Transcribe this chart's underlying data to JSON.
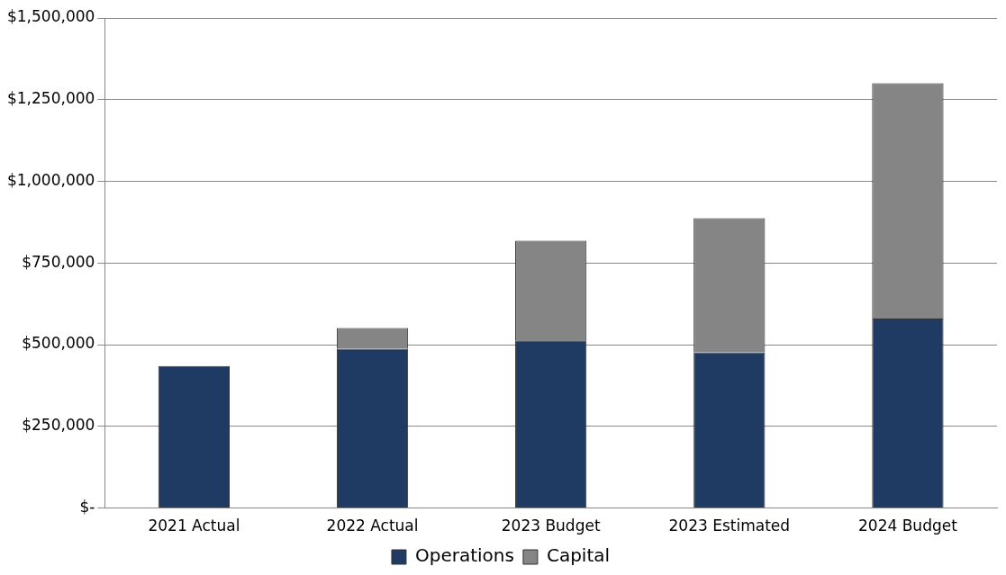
{
  "chart_data": {
    "type": "bar",
    "stacked": true,
    "categories": [
      "2021 Actual",
      "2022 Actual",
      "2023 Budget",
      "2023 Estimated",
      "2024 Budget"
    ],
    "series": [
      {
        "name": "Operations",
        "color": "#1f3b64",
        "values": [
          435000,
          488000,
          513000,
          477000,
          580000
        ]
      },
      {
        "name": "Capital",
        "color": "#858585",
        "values": [
          null,
          63000,
          305000,
          410000,
          720000
        ]
      }
    ],
    "ylim": [
      0,
      1500000
    ],
    "yticks": [
      {
        "value": 0,
        "label": "$-"
      },
      {
        "value": 250000,
        "label": "$250,000"
      },
      {
        "value": 500000,
        "label": "$500,000"
      },
      {
        "value": 750000,
        "label": "$750,000"
      },
      {
        "value": 1000000,
        "label": "$1,000,000"
      },
      {
        "value": 1250000,
        "label": "$1,250,000"
      },
      {
        "value": 1500000,
        "label": "$1,500,000"
      }
    ],
    "grid": "y",
    "legend": "bottom"
  }
}
